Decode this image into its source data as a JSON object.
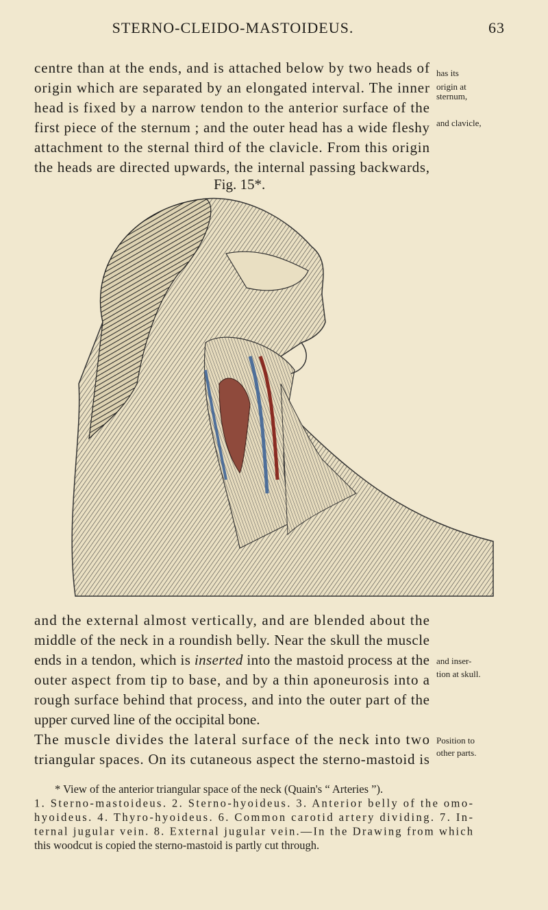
{
  "header": {
    "title": "STERNO-CLEIDO-MASTOIDEUS.",
    "page_number": "63"
  },
  "paragraphs": [
    {
      "lines": [
        "centre than at the ends, and is attached below by two heads of",
        "origin which are separated by an elongated interval. The inner",
        "head is fixed by a narrow tendon to the anterior surface of the",
        "first piece of the sternum ; and the outer head has a wide fleshy",
        "attachment to the sternal third of the clavicle. From this origin",
        "the heads are directed upwards, the internal passing backwards,"
      ]
    },
    {
      "lines": [
        "and the external almost vertically, and are blended about the",
        "middle of the neck in a roundish belly. Near the skull the muscle",
        [
          "ends in a tendon, which is ",
          "inserted",
          " into the mastoid process at the"
        ],
        "outer aspect from tip to base, and by a thin aponeurosis into a",
        "rough surface behind that process, and into the outer part of the",
        "upper curved line of the occipital bone.",
        "The muscle divides the lateral surface of the neck into two",
        "triangular spaces. On its cutaneous aspect the sterno-mastoid is"
      ]
    }
  ],
  "margin_notes": [
    {
      "lines": [
        "has its",
        "origin at",
        "sternum,",
        "and clavicle,"
      ]
    },
    {
      "lines": [
        "and inser-",
        "tion at skull."
      ]
    },
    {
      "lines": [
        "Position to",
        "other parts."
      ]
    }
  ],
  "figure": {
    "label": "Fig. 15*."
  },
  "footnote": {
    "lines": [
      "* View of the anterior triangular space of the neck (Quain's “ Arteries ”).",
      "1. Sterno-mastoideus. 2. Sterno-hyoideus. 3. Anterior belly of the omo-",
      "hyoideus. 4. Thyro-hyoideus. 6. Common carotid artery dividing. 7. In-",
      "ternal jugular vein. 8. External jugular vein.—In the Drawing from which",
      "this woodcut is copied the sterno-mastoid is partly cut through."
    ]
  }
}
